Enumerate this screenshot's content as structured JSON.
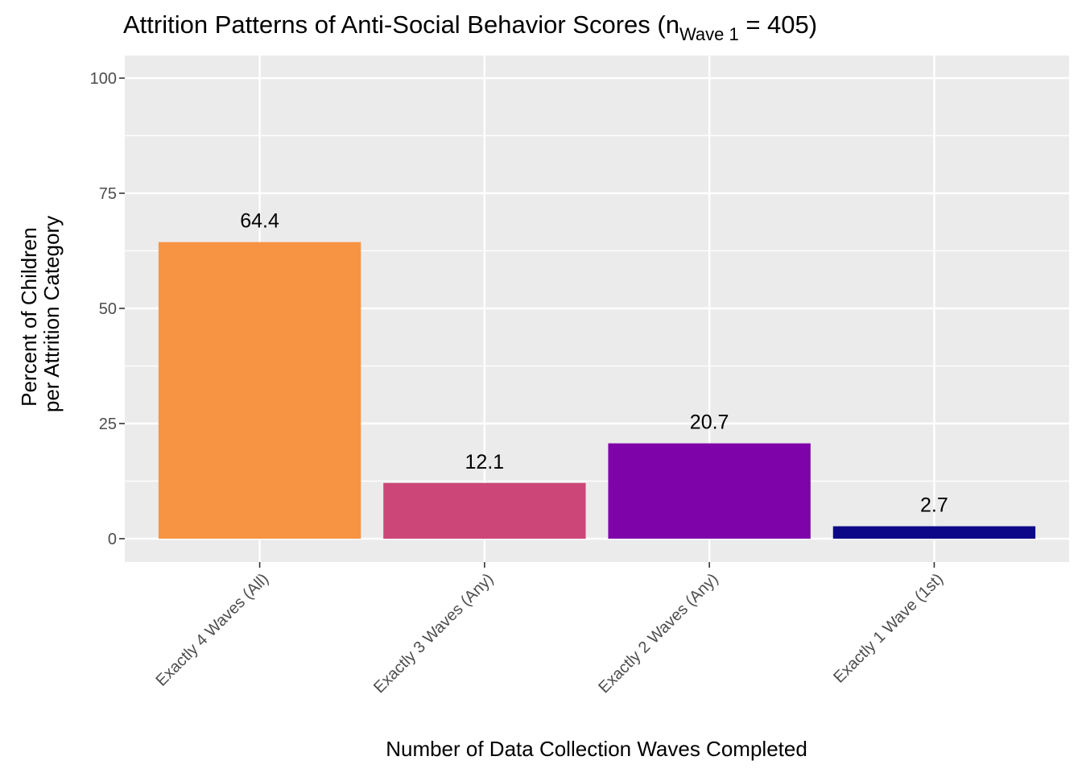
{
  "chart_data": {
    "type": "bar",
    "title": {
      "main": "Attrition Patterns of Anti-Social Behavior Scores (n",
      "subscript": "Wave 1",
      "tail": " = 405)"
    },
    "xlabel": "Number of Data Collection Waves Completed",
    "ylabel_lines": [
      "Percent of Children",
      "per Attrition Category"
    ],
    "categories": [
      "Exactly 4 Waves (All)",
      "Exactly 3 Waves (Any)",
      "Exactly 2 Waves (Any)",
      "Exactly 1 Wave (1st)"
    ],
    "values": [
      64.4,
      12.1,
      20.7,
      2.7
    ],
    "value_labels": [
      "64.4",
      "12.1",
      "20.7",
      "2.7"
    ],
    "colors": [
      "#F79443",
      "#CC4778",
      "#7E03A8",
      "#0D0887"
    ],
    "ylim": [
      0,
      100
    ],
    "yticks": [
      0,
      25,
      50,
      75,
      100
    ],
    "ytick_labels": [
      "0",
      "25",
      "50",
      "75",
      "100"
    ],
    "grid": true,
    "panel_background": "#EBEBEB",
    "legend": "none"
  }
}
